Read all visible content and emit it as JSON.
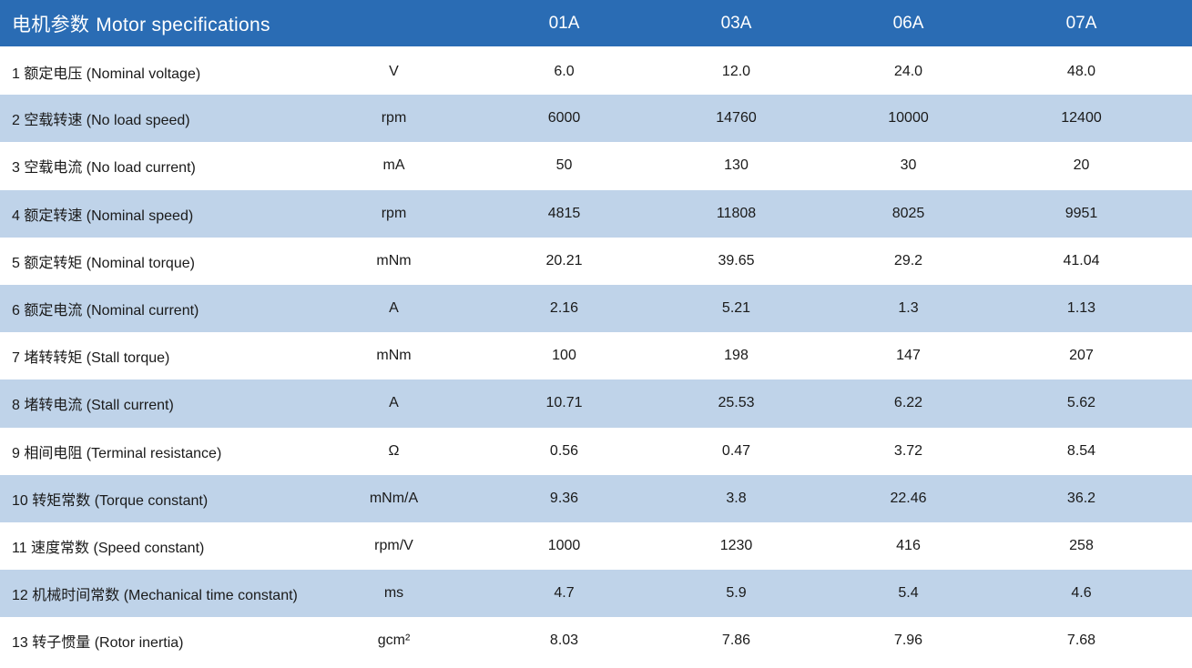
{
  "colors": {
    "header_bg": "#2a6cb4",
    "row_alt_bg": "#bfd3e9",
    "header_text": "#ffffff",
    "body_text": "#1a1a1a"
  },
  "header": {
    "title_zh": "电机参数",
    "title_en": "Motor specifications",
    "columns": [
      "01A",
      "03A",
      "06A",
      "07A"
    ]
  },
  "table": {
    "rows": [
      {
        "label": "1 额定电压 (Nominal voltage)",
        "unit": "V",
        "values": [
          "6.0",
          "12.0",
          "24.0",
          "48.0"
        ]
      },
      {
        "label": "2 空载转速 (No load speed)",
        "unit": "rpm",
        "values": [
          "6000",
          "14760",
          "10000",
          "12400"
        ]
      },
      {
        "label": "3 空载电流 (No load current)",
        "unit": "mA",
        "values": [
          "50",
          "130",
          "30",
          "20"
        ]
      },
      {
        "label": "4 额定转速 (Nominal speed)",
        "unit": "rpm",
        "values": [
          "4815",
          "11808",
          "8025",
          "9951"
        ]
      },
      {
        "label": "5 额定转矩 (Nominal torque)",
        "unit": "mNm",
        "values": [
          "20.21",
          "39.65",
          "29.2",
          "41.04"
        ]
      },
      {
        "label": "6 额定电流 (Nominal current)",
        "unit": "A",
        "values": [
          "2.16",
          "5.21",
          "1.3",
          "1.13"
        ]
      },
      {
        "label": "7 堵转转矩 (Stall torque)",
        "unit": "mNm",
        "values": [
          "100",
          "198",
          "147",
          "207"
        ]
      },
      {
        "label": "8 堵转电流 (Stall current)",
        "unit": "A",
        "values": [
          "10.71",
          "25.53",
          "6.22",
          "5.62"
        ]
      },
      {
        "label": "9 相间电阻 (Terminal resistance)",
        "unit": "Ω",
        "values": [
          "0.56",
          "0.47",
          "3.72",
          "8.54"
        ]
      },
      {
        "label": "10 转矩常数 (Torque constant)",
        "unit": "mNm/A",
        "values": [
          "9.36",
          "3.8",
          "22.46",
          "36.2"
        ]
      },
      {
        "label": "11 速度常数 (Speed constant)",
        "unit": "rpm/V",
        "values": [
          "1000",
          "1230",
          "416",
          "258"
        ]
      },
      {
        "label": "12 机械时间常数 (Mechanical time constant)",
        "unit": "ms",
        "values": [
          "4.7",
          "5.9",
          "5.4",
          "4.6"
        ]
      },
      {
        "label": "13 转子惯量 (Rotor inertia)",
        "unit": "gcm²",
        "values": [
          "8.03",
          "7.86",
          "7.96",
          "7.68"
        ]
      }
    ]
  }
}
